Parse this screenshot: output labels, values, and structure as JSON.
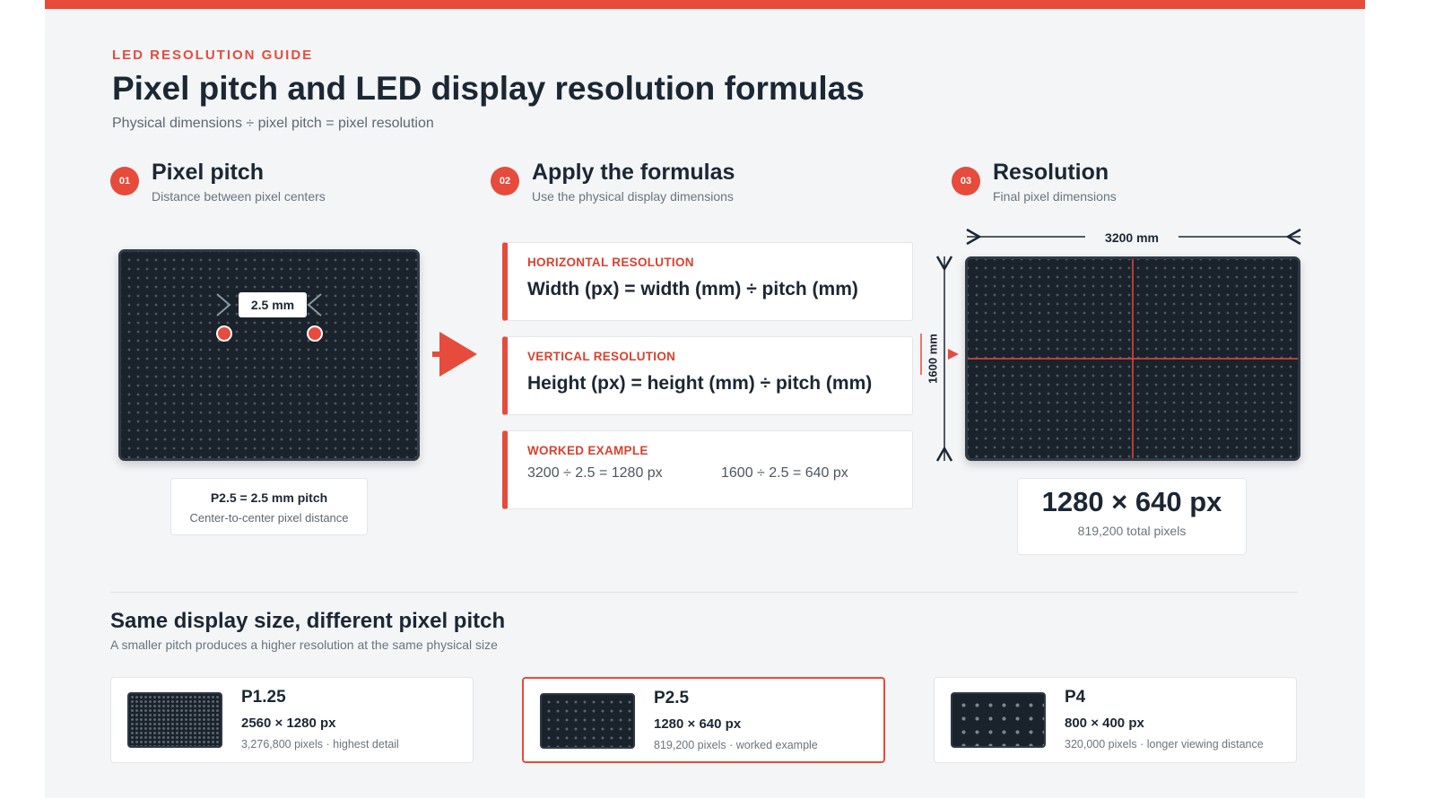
{
  "header": {
    "eyebrow": "LED RESOLUTION GUIDE",
    "title": "Pixel pitch and LED display resolution formulas",
    "subtitle": "Physical dimensions ÷ pixel pitch = pixel resolution"
  },
  "steps": [
    {
      "num": "01",
      "title": "Pixel pitch",
      "desc": "Distance between pixel centers"
    },
    {
      "num": "02",
      "title": "Apply the formulas",
      "desc": "Use the physical display dimensions"
    },
    {
      "num": "03",
      "title": "Resolution",
      "desc": "Final pixel dimensions"
    }
  ],
  "pitch_panel": {
    "pitch_label": "2.5 mm",
    "card_title": "P2.5 = 2.5 mm pitch",
    "card_desc": "Center-to-center pixel distance"
  },
  "formulas": {
    "horizontal": {
      "label": "HORIZONTAL RESOLUTION",
      "equation": "Width (px) = width (mm) ÷ pitch (mm)"
    },
    "vertical": {
      "label": "VERTICAL RESOLUTION",
      "equation": "Height (px) = height (mm) ÷ pitch (mm)"
    },
    "example": {
      "label": "WORKED EXAMPLE",
      "width_calc": "3200 ÷ 2.5 = 1280 px",
      "height_calc": "1600 ÷ 2.5 = 640 px"
    }
  },
  "resolution_panel": {
    "width_dim": "3200 mm",
    "height_dim": "1600 mm",
    "result": "1280 × 640 px",
    "total": "819,200 total pixels"
  },
  "comparison": {
    "title": "Same display size, different pixel pitch",
    "subtitle": "A smaller pitch produces a higher resolution at the same physical size",
    "items": [
      {
        "name": "P1.25",
        "resolution": "2560 × 1280 px",
        "pixels": "3,276,800 pixels",
        "note": "highest detail"
      },
      {
        "name": "P2.5",
        "resolution": "1280 × 640 px",
        "pixels": "819,200 pixels",
        "note": "worked example"
      },
      {
        "name": "P4",
        "resolution": "800 × 400 px",
        "pixels": "320,000 pixels",
        "note": "longer viewing distance"
      }
    ]
  },
  "colors": {
    "accent": "#e64b3c",
    "panel": "#1a222b",
    "background": "#f3f5f7"
  }
}
